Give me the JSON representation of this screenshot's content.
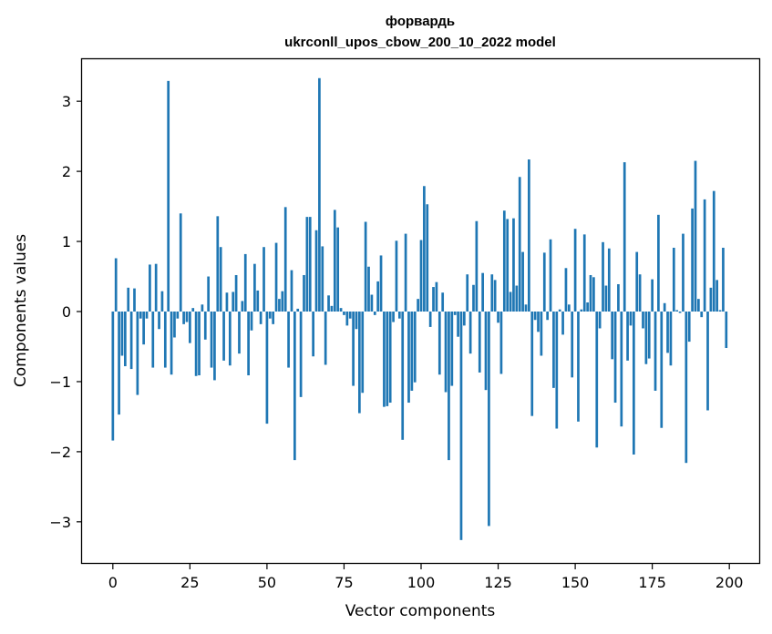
{
  "chart_data": {
    "type": "bar",
    "title_line1": "форвардь",
    "title_line2": "ukrconll_upos_cbow_200_10_2022 model",
    "xlabel": "Vector components",
    "ylabel": "Components values",
    "xlim": [
      -10,
      210
    ],
    "ylim": [
      -3.6,
      3.6
    ],
    "xticks": [
      0,
      25,
      50,
      75,
      100,
      125,
      150,
      175,
      200
    ],
    "xtick_labels": [
      "0",
      "25",
      "50",
      "75",
      "100",
      "125",
      "150",
      "175",
      "200"
    ],
    "yticks": [
      -3,
      -2,
      -1,
      0,
      1,
      2,
      3
    ],
    "ytick_labels": [
      "−3",
      "−2",
      "−1",
      "0",
      "1",
      "2",
      "3"
    ],
    "grid": false,
    "bar_color": "#1f77b4",
    "values": [
      -1.84,
      0.76,
      -1.47,
      -0.63,
      -0.78,
      0.34,
      -0.82,
      0.33,
      -1.19,
      -0.1,
      -0.47,
      -0.1,
      0.67,
      -0.8,
      0.68,
      -0.25,
      0.29,
      -0.8,
      3.29,
      -0.9,
      -0.37,
      -0.1,
      1.4,
      -0.18,
      -0.15,
      -0.45,
      0.05,
      -0.92,
      -0.91,
      0.1,
      -0.4,
      0.5,
      -0.8,
      -0.98,
      1.36,
      0.92,
      -0.7,
      0.27,
      -0.77,
      0.28,
      0.52,
      -0.6,
      0.15,
      0.82,
      -0.91,
      -0.27,
      0.68,
      0.3,
      -0.18,
      0.92,
      -1.6,
      -0.1,
      -0.18,
      0.98,
      0.18,
      0.29,
      1.49,
      -0.8,
      0.59,
      -2.12,
      0.04,
      -1.22,
      0.52,
      1.35,
      1.35,
      -0.64,
      1.16,
      3.33,
      0.93,
      -0.76,
      0.23,
      0.08,
      1.45,
      1.2,
      0.05,
      -0.05,
      -0.2,
      -0.1,
      -1.06,
      -0.25,
      -1.45,
      -1.16,
      1.28,
      0.64,
      0.24,
      -0.05,
      0.43,
      0.8,
      -1.36,
      -1.35,
      -1.3,
      -0.15,
      1.01,
      -0.1,
      -1.83,
      1.11,
      -1.3,
      -1.13,
      -1.01,
      0.18,
      1.02,
      1.79,
      1.53,
      -0.22,
      0.35,
      0.42,
      -0.9,
      0.27,
      -1.15,
      -2.12,
      -1.06,
      -0.05,
      -0.36,
      -3.26,
      -0.2,
      0.53,
      -0.6,
      0.38,
      1.29,
      -0.87,
      0.55,
      -1.12,
      -3.06,
      0.53,
      0.45,
      -0.16,
      -0.89,
      1.44,
      1.32,
      0.28,
      1.33,
      0.37,
      1.92,
      0.85,
      0.1,
      2.17,
      -1.49,
      -0.12,
      -0.29,
      -0.63,
      0.84,
      -0.12,
      1.03,
      -1.09,
      -1.67,
      0.03,
      -0.33,
      0.62,
      0.1,
      -0.94,
      1.18,
      -1.57,
      0.03,
      1.1,
      0.13,
      0.52,
      0.49,
      -1.94,
      -0.24,
      0.99,
      0.37,
      0.9,
      -0.68,
      -1.3,
      0.39,
      -1.64,
      2.13,
      -0.7,
      -0.2,
      -2.04,
      0.85,
      0.53,
      -0.24,
      -0.75,
      -0.67,
      0.46,
      -1.13,
      1.38,
      -1.66,
      0.12,
      -0.59,
      -0.77,
      0.91,
      0.02,
      -0.02,
      1.11,
      -2.16,
      -0.43,
      1.47,
      2.15,
      0.18,
      -0.08,
      1.6,
      -1.41,
      0.34,
      1.72,
      0.45,
      0.02,
      0.91,
      -0.52
    ]
  }
}
